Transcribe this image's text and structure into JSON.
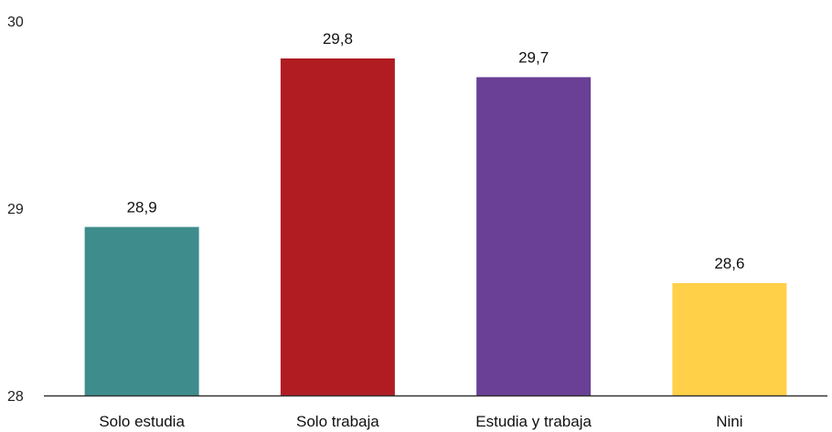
{
  "chart_data": {
    "type": "bar",
    "categories": [
      "Solo estudia",
      "Solo trabaja",
      "Estudia y trabaja",
      "Nini"
    ],
    "values": [
      28.9,
      29.8,
      29.7,
      28.6
    ],
    "data_labels": [
      "28,9",
      "29,8",
      "29,7",
      "28,6"
    ],
    "colors": [
      "#3f8c8c",
      "#b01c22",
      "#6a3f96",
      "#ffd048"
    ],
    "ylim": [
      28,
      30
    ],
    "yticks": [
      28,
      29,
      30
    ],
    "ytick_labels": [
      "28",
      "29",
      "30"
    ],
    "title": "",
    "xlabel": "",
    "ylabel": "",
    "grid": false,
    "legend": "none"
  }
}
